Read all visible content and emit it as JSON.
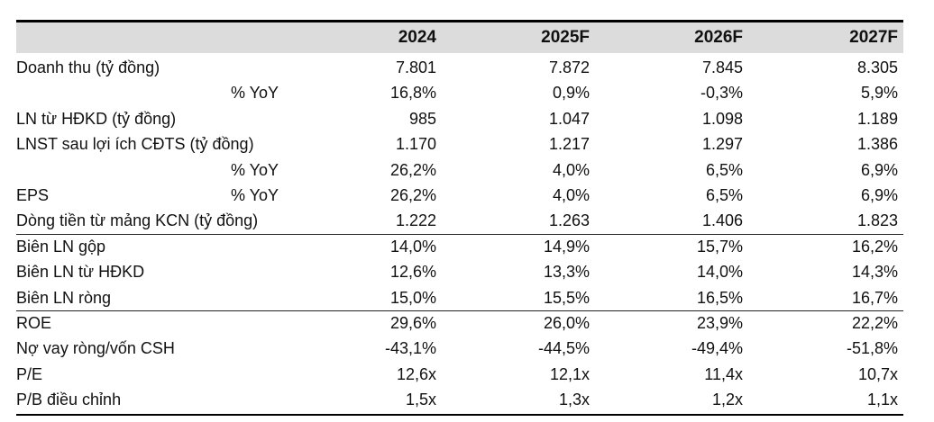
{
  "table": {
    "years": [
      "2024",
      "2025F",
      "2026F",
      "2027F"
    ],
    "rows": [
      {
        "label": "Doanh thu (tỷ đồng)",
        "sub": "",
        "values": [
          "7.801",
          "7.872",
          "7.845",
          "8.305"
        ]
      },
      {
        "label": "",
        "sub": "% YoY",
        "values": [
          "16,8%",
          "0,9%",
          "-0,3%",
          "5,9%"
        ]
      },
      {
        "label": "LN từ HĐKD (tỷ đồng)",
        "sub": "",
        "values": [
          "985",
          "1.047",
          "1.098",
          "1.189"
        ]
      },
      {
        "label": "LNST sau lợi ích CĐTS (tỷ đồng)",
        "sub": "",
        "values": [
          "1.170",
          "1.217",
          "1.297",
          "1.386"
        ]
      },
      {
        "label": "",
        "sub": "% YoY",
        "values": [
          "26,2%",
          "4,0%",
          "6,5%",
          "6,9%"
        ]
      },
      {
        "label": "EPS",
        "sub": "% YoY",
        "values": [
          "26,2%",
          "4,0%",
          "6,5%",
          "6,9%"
        ]
      },
      {
        "label": "Dòng tiền từ mảng KCN (tỷ đồng)",
        "sub": "",
        "values": [
          "1.222",
          "1.263",
          "1.406",
          "1.823"
        ]
      },
      {
        "label": "Biên LN gộp",
        "sub": "",
        "values": [
          "14,0%",
          "14,9%",
          "15,7%",
          "16,2%"
        ]
      },
      {
        "label": "Biên LN từ HĐKD",
        "sub": "",
        "values": [
          "12,6%",
          "13,3%",
          "14,0%",
          "14,3%"
        ]
      },
      {
        "label": "Biên LN ròng",
        "sub": "",
        "values": [
          "15,0%",
          "15,5%",
          "16,5%",
          "16,7%"
        ]
      },
      {
        "label": "ROE",
        "sub": "",
        "values": [
          "29,6%",
          "26,0%",
          "23,9%",
          "22,2%"
        ]
      },
      {
        "label": "Nợ vay ròng/vốn CSH",
        "sub": "",
        "values": [
          "-43,1%",
          "-44,5%",
          "-49,4%",
          "-51,8%"
        ]
      },
      {
        "label": "P/E",
        "sub": "",
        "values": [
          "12,6x",
          "12,1x",
          "11,4x",
          "10,7x"
        ]
      },
      {
        "label": "P/B điều chỉnh",
        "sub": "",
        "values": [
          "1,5x",
          "1,3x",
          "1,2x",
          "1,1x"
        ]
      }
    ]
  }
}
